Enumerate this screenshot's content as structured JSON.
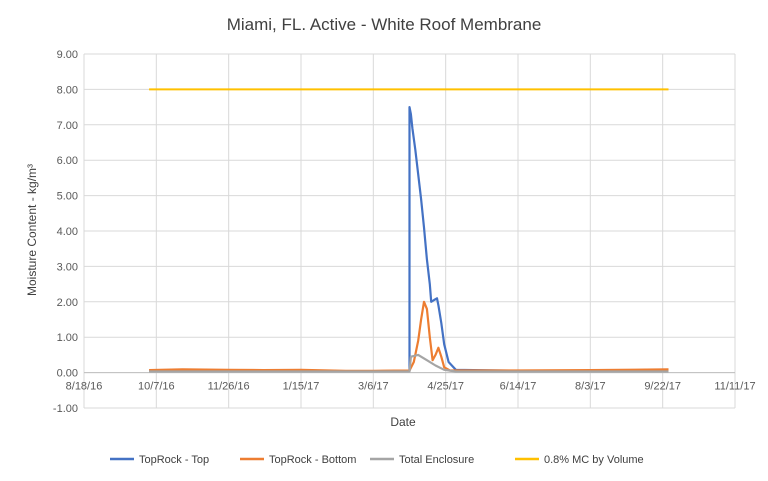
{
  "chart_data": {
    "type": "line",
    "title": "Miami, FL.  Active - White Roof Membrane",
    "xlabel": "Date",
    "ylabel": "Moisture Content - kg/m³",
    "ylim": [
      -1.0,
      9.0
    ],
    "yticks": [
      "-1.00",
      "0.00",
      "1.00",
      "2.00",
      "3.00",
      "4.00",
      "5.00",
      "6.00",
      "7.00",
      "8.00",
      "9.00"
    ],
    "xlim": [
      "2016-08-18",
      "2017-11-11"
    ],
    "xticks": [
      "8/18/16",
      "10/7/16",
      "11/26/16",
      "1/15/17",
      "3/6/17",
      "4/25/17",
      "6/14/17",
      "8/3/17",
      "9/22/17",
      "11/11/17"
    ],
    "grid": true,
    "legend_position": "bottom",
    "series": [
      {
        "name": "TopRock - Top",
        "color": "#4472C4",
        "points": [
          [
            "2016-10-02",
            0.05
          ],
          [
            "2016-10-20",
            0.06
          ],
          [
            "2016-11-10",
            0.05
          ],
          [
            "2016-12-05",
            0.06
          ],
          [
            "2017-01-10",
            0.05
          ],
          [
            "2017-02-10",
            0.04
          ],
          [
            "2017-03-06",
            0.04
          ],
          [
            "2017-03-30",
            0.05
          ],
          [
            "2017-03-31",
            0.05
          ],
          [
            "2017-03-31",
            7.5
          ],
          [
            "2017-04-01",
            7.3
          ],
          [
            "2017-04-02",
            6.9
          ],
          [
            "2017-04-04",
            6.3
          ],
          [
            "2017-04-06",
            5.6
          ],
          [
            "2017-04-08",
            4.9
          ],
          [
            "2017-04-10",
            4.1
          ],
          [
            "2017-04-12",
            3.2
          ],
          [
            "2017-04-14",
            2.5
          ],
          [
            "2017-04-15",
            2.0
          ],
          [
            "2017-04-17",
            2.05
          ],
          [
            "2017-04-19",
            2.1
          ],
          [
            "2017-04-20",
            1.9
          ],
          [
            "2017-04-22",
            1.4
          ],
          [
            "2017-04-24",
            0.8
          ],
          [
            "2017-04-27",
            0.3
          ],
          [
            "2017-05-02",
            0.08
          ],
          [
            "2017-06-14",
            0.05
          ],
          [
            "2017-08-03",
            0.05
          ],
          [
            "2017-09-26",
            0.06
          ]
        ]
      },
      {
        "name": "TopRock - Bottom",
        "color": "#ED7D31",
        "points": [
          [
            "2016-10-02",
            0.07
          ],
          [
            "2016-10-25",
            0.09
          ],
          [
            "2016-11-26",
            0.08
          ],
          [
            "2016-12-20",
            0.07
          ],
          [
            "2017-01-15",
            0.08
          ],
          [
            "2017-02-15",
            0.05
          ],
          [
            "2017-03-06",
            0.05
          ],
          [
            "2017-03-31",
            0.06
          ],
          [
            "2017-04-03",
            0.3
          ],
          [
            "2017-04-06",
            0.9
          ],
          [
            "2017-04-08",
            1.5
          ],
          [
            "2017-04-10",
            2.0
          ],
          [
            "2017-04-12",
            1.8
          ],
          [
            "2017-04-14",
            1.0
          ],
          [
            "2017-04-16",
            0.35
          ],
          [
            "2017-04-18",
            0.5
          ],
          [
            "2017-04-20",
            0.7
          ],
          [
            "2017-04-22",
            0.45
          ],
          [
            "2017-04-24",
            0.15
          ],
          [
            "2017-04-28",
            0.06
          ],
          [
            "2017-06-14",
            0.06
          ],
          [
            "2017-08-03",
            0.07
          ],
          [
            "2017-09-26",
            0.09
          ]
        ]
      },
      {
        "name": "Total Enclosure",
        "color": "#A5A5A5",
        "points": [
          [
            "2016-10-02",
            0.03
          ],
          [
            "2017-01-15",
            0.03
          ],
          [
            "2017-03-31",
            0.03
          ],
          [
            "2017-04-01",
            0.45
          ],
          [
            "2017-04-06",
            0.5
          ],
          [
            "2017-04-12",
            0.35
          ],
          [
            "2017-04-18",
            0.2
          ],
          [
            "2017-04-24",
            0.08
          ],
          [
            "2017-05-02",
            0.03
          ],
          [
            "2017-09-26",
            0.03
          ]
        ]
      },
      {
        "name": "0.8% MC by Volume",
        "color": "#FFC000",
        "points": [
          [
            "2016-10-02",
            8.0
          ],
          [
            "2017-09-26",
            8.0
          ]
        ]
      }
    ]
  }
}
